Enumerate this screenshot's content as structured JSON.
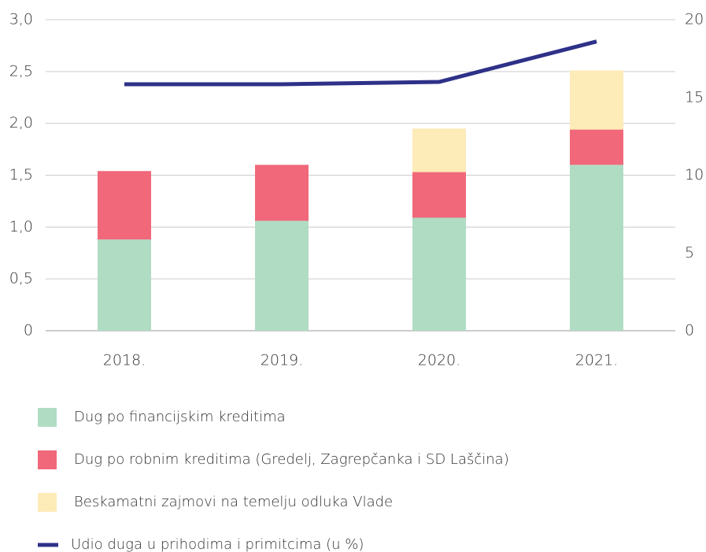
{
  "chart_data": {
    "type": "bar",
    "categories": [
      "2018.",
      "2019.",
      "2020.",
      "2021."
    ],
    "series": [
      {
        "name": "Dug po financijskim kreditima",
        "color": "#b0dcc4",
        "values": [
          0.88,
          1.06,
          1.09,
          1.6
        ]
      },
      {
        "name": "Dug po robnim kreditima (Gredelj, Zagrepčanka i SD Laščina)",
        "color": "#f0687a",
        "values": [
          0.66,
          0.54,
          0.44,
          0.34
        ]
      },
      {
        "name": "Beskamatni zajmovi na temelju odluka Vlade",
        "color": "#fdebb8",
        "values": [
          null,
          null,
          0.42,
          0.57
        ]
      },
      {
        "name": "Udio duga u prihodima i primitcima (u %)",
        "color": "#2e3188",
        "type": "line",
        "axis": "y2",
        "values": [
          15.85,
          15.85,
          16.0,
          18.6
        ]
      }
    ],
    "ylim": [
      0,
      3
    ],
    "yticks": [
      0,
      {
        "value": 0.5,
        "label": "0,5"
      },
      {
        "value": 1,
        "label": "1,0"
      },
      {
        "value": 1.5,
        "label": "1,5"
      },
      {
        "value": 2,
        "label": "2,0"
      },
      {
        "value": 2.5,
        "label": "2,5"
      },
      {
        "value": 3,
        "label": "3,0"
      }
    ],
    "y2lim": [
      0,
      20
    ],
    "y2ticks": [
      0,
      5,
      10,
      15,
      20
    ],
    "grid": true,
    "legend": "bottom"
  }
}
